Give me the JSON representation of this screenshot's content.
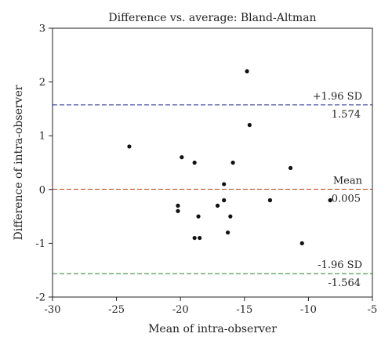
{
  "chart_data": {
    "type": "scatter",
    "title": "Difference vs. average: Bland-Altman",
    "xlabel": "Mean of intra-observer",
    "ylabel": "Difference of intra-observer",
    "xlim": [
      -30,
      -5
    ],
    "ylim": [
      -2,
      3
    ],
    "xticks": [
      -30,
      -25,
      -20,
      -15,
      -10,
      -5
    ],
    "yticks": [
      -2,
      -1,
      0,
      1,
      2,
      3
    ],
    "xtick_labels": [
      "-30",
      "-25",
      "-20",
      "-15",
      "-10",
      "-5"
    ],
    "ytick_labels": [
      "-2",
      "-1",
      "0",
      "1",
      "2",
      "3"
    ],
    "grid": false,
    "points": [
      {
        "x": -24.0,
        "y": 0.8
      },
      {
        "x": -20.2,
        "y": -0.3
      },
      {
        "x": -20.2,
        "y": -0.4
      },
      {
        "x": -19.9,
        "y": 0.6
      },
      {
        "x": -18.9,
        "y": 0.5
      },
      {
        "x": -18.6,
        "y": -0.5
      },
      {
        "x": -18.9,
        "y": -0.9
      },
      {
        "x": -18.5,
        "y": -0.9
      },
      {
        "x": -17.1,
        "y": -0.3
      },
      {
        "x": -16.6,
        "y": 0.1
      },
      {
        "x": -16.6,
        "y": -0.2
      },
      {
        "x": -16.1,
        "y": -0.5
      },
      {
        "x": -15.9,
        "y": 0.5
      },
      {
        "x": -16.3,
        "y": -0.8
      },
      {
        "x": -14.8,
        "y": 2.2
      },
      {
        "x": -14.6,
        "y": 1.2
      },
      {
        "x": -13.0,
        "y": -0.2
      },
      {
        "x": -11.4,
        "y": 0.4
      },
      {
        "x": -10.5,
        "y": -1.0
      },
      {
        "x": -8.3,
        "y": -0.2
      }
    ],
    "reference_lines": [
      {
        "label": "+1.96 SD",
        "value_label": "1.574",
        "y": 1.574,
        "color": "#3b3b9e"
      },
      {
        "label": "Mean",
        "value_label": "0.005",
        "y": 0.005,
        "color": "#c8552a"
      },
      {
        "label": "-1.96 SD",
        "value_label": "-1.564",
        "y": -1.564,
        "color": "#4e9a4e"
      }
    ]
  }
}
